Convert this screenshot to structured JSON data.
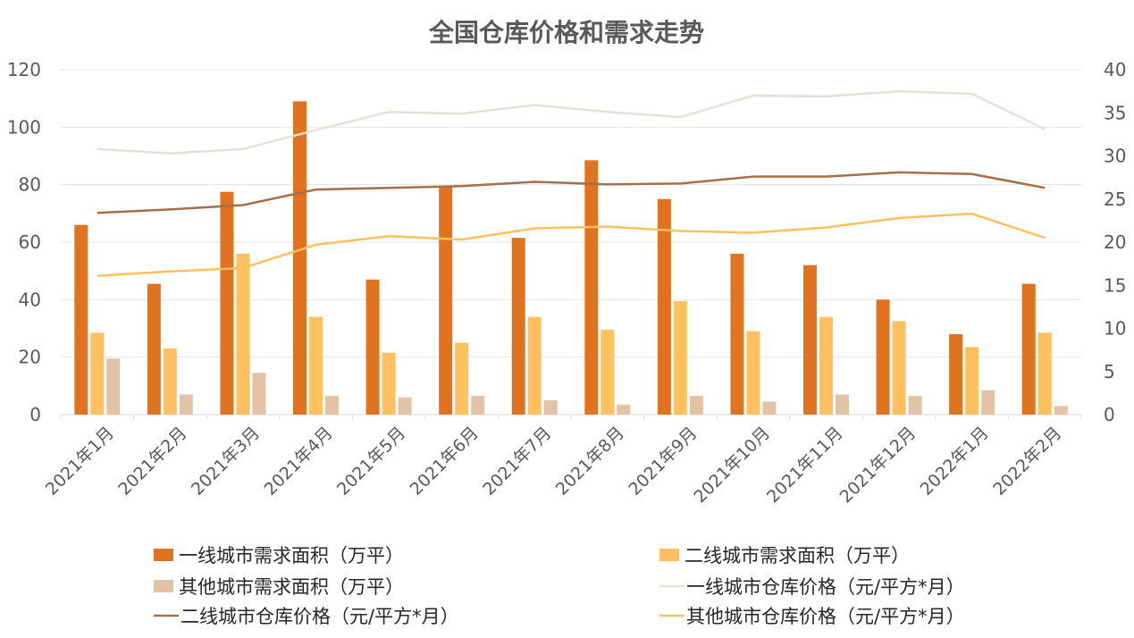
{
  "chart_data": {
    "type": "bar",
    "title": "全国仓库价格和需求走势",
    "categories": [
      "2021年1月",
      "2021年2月",
      "2021年3月",
      "2021年4月",
      "2021年5月",
      "2021年6月",
      "2021年7月",
      "2021年8月",
      "2021年9月",
      "2021年10月",
      "2021年11月",
      "2021年12月",
      "2022年1月",
      "2022年2月"
    ],
    "y_left": {
      "range": [
        0,
        120
      ],
      "ticks": [
        "0",
        "20",
        "40",
        "60",
        "80",
        "100",
        "120"
      ]
    },
    "y_right": {
      "range": [
        0,
        40
      ],
      "ticks": [
        "0",
        "5",
        "10",
        "15",
        "20",
        "25",
        "30",
        "35",
        "40"
      ]
    },
    "grid": true,
    "legend_position": "bottom",
    "bar_series": [
      {
        "name": "一线城市需求面积（万平）",
        "color": "#E07320",
        "axis": "left",
        "values": [
          66,
          45.5,
          77.5,
          109,
          47,
          79.5,
          61.5,
          88.5,
          75,
          56,
          52,
          40,
          28,
          45.5
        ]
      },
      {
        "name": "二线城市需求面积（万平）",
        "color": "#FFC060",
        "axis": "left",
        "values": [
          28.5,
          23,
          56,
          34,
          21.5,
          25,
          34,
          29.5,
          39.5,
          29,
          34,
          32.5,
          23.5,
          28.5
        ]
      },
      {
        "name": "其他城市需求面积（万平）",
        "color": "#E3C3A5",
        "axis": "left",
        "values": [
          19.5,
          7,
          14.5,
          6.5,
          6,
          6.5,
          5,
          3.5,
          6.5,
          4.5,
          7,
          6.5,
          8.5,
          3
        ]
      }
    ],
    "line_series": [
      {
        "name": "一线城市仓库价格（元/平方*月）",
        "color": "#E2E2D8",
        "axis": "right",
        "values": [
          30.8,
          30.3,
          30.8,
          33,
          35.1,
          34.9,
          35.9,
          35.1,
          34.5,
          37,
          36.9,
          37.5,
          37.2,
          33.1
        ]
      },
      {
        "name": "二线城市仓库价格（元/平方*月）",
        "color": "#A86E4A",
        "axis": "right",
        "values": [
          23.4,
          23.8,
          24.3,
          26.1,
          26.3,
          26.5,
          27,
          26.7,
          26.8,
          27.6,
          27.6,
          28.1,
          27.9,
          26.3
        ]
      },
      {
        "name": "其他城市仓库价格（元/平方*月）",
        "color": "#FFC060",
        "axis": "right",
        "values": [
          16.1,
          16.6,
          17,
          19.7,
          20.7,
          20.3,
          21.6,
          21.8,
          21.3,
          21.1,
          21.7,
          22.8,
          23.3,
          20.5
        ]
      }
    ]
  }
}
